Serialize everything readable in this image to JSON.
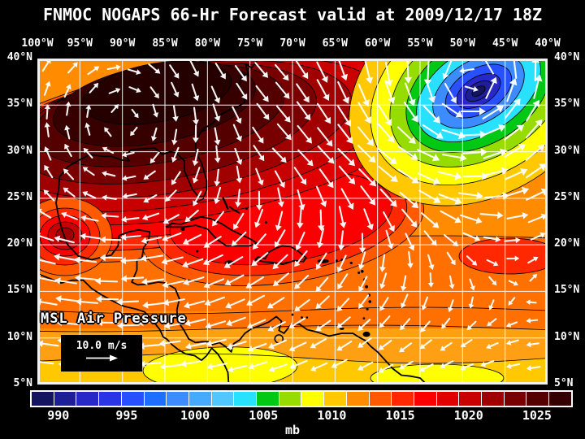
{
  "title": "FNMOC NOGAPS 66-Hr Forecast valid at 2009/12/17 18Z",
  "map": {
    "field_label": "MSL Air Pressure",
    "wind_scale_label": "10.0 m/s",
    "lon_ticks": [
      "100°W",
      "95°W",
      "90°W",
      "85°W",
      "80°W",
      "75°W",
      "70°W",
      "65°W",
      "60°W",
      "55°W",
      "50°W",
      "45°W",
      "40°W"
    ],
    "lat_ticks": [
      "40°N",
      "35°N",
      "30°N",
      "25°N",
      "20°N",
      "15°N",
      "10°N",
      "5°N"
    ]
  },
  "colorbar": {
    "unit": "mb",
    "ticks": [
      "990",
      "995",
      "1000",
      "1005",
      "1010",
      "1015",
      "1020",
      "1025"
    ],
    "tick_positions_pct": [
      5.2,
      17.8,
      30.4,
      43.0,
      55.6,
      68.2,
      80.8,
      93.4
    ],
    "colors": [
      "#14145F",
      "#1E1E96",
      "#2828C8",
      "#2836E6",
      "#2850FF",
      "#1E6EFF",
      "#3C8CFF",
      "#46AAFF",
      "#50C8FF",
      "#28E1FF",
      "#00C814",
      "#96DC00",
      "#FFFF00",
      "#FFC800",
      "#FF8C00",
      "#FF5A00",
      "#FF2800",
      "#FA0000",
      "#E10000",
      "#C80000",
      "#A00000",
      "#780000",
      "#550000",
      "#370000"
    ],
    "field_extra_colors": {
      "light_orange": "#FFA014",
      "band_orange": "#FF7000",
      "dark_core": "#240000",
      "grid_line": "#FFFFFF",
      "coast_line": "#000000",
      "arrow": "#FFFFFF"
    }
  },
  "chart_data": {
    "type": "heatmap",
    "title": "FNMOC NOGAPS 66-Hr Forecast valid at 2009/12/17 18Z",
    "variable": "MSL Air Pressure",
    "unit": "mb",
    "lon_range_deg_west": [
      100,
      40
    ],
    "lat_range_deg_north": [
      5,
      40
    ],
    "grid_spacing_deg": 5,
    "colorbar_values_mb": [
      990,
      995,
      1000,
      1005,
      1010,
      1015,
      1020,
      1025
    ],
    "wind_reference_speed": "10.0 m/s",
    "pressure_centers": [
      {
        "type": "high",
        "lon": -88.0,
        "lat": 33.5,
        "approx_pressure_mb": 1026,
        "note": "dark maroon maximum over the SE United States / Gulf of Mexico"
      },
      {
        "type": "low",
        "lon": -48.5,
        "lat": 36.5,
        "approx_pressure_mb": 988,
        "note": "deep blue minimum with cyclonic swirl, central North Atlantic"
      },
      {
        "type": "high",
        "lon": -96.8,
        "lat": 20.9,
        "approx_pressure_mb": 1020,
        "note": "small closed maximum near the Bay of Campeche"
      },
      {
        "type": "high",
        "lon": -44.5,
        "lat": 19.0,
        "approx_pressure_mb": 1016,
        "note": "small warm patch at the eastern edge"
      }
    ],
    "flow_features": [
      "easterly trade winds south of ~22N (white arrows pointing west)",
      "counterclockwise circulation around the Atlantic low",
      "weak winds over the subtropical high",
      "southwest-to-northeast flow between the high and the low"
    ]
  }
}
